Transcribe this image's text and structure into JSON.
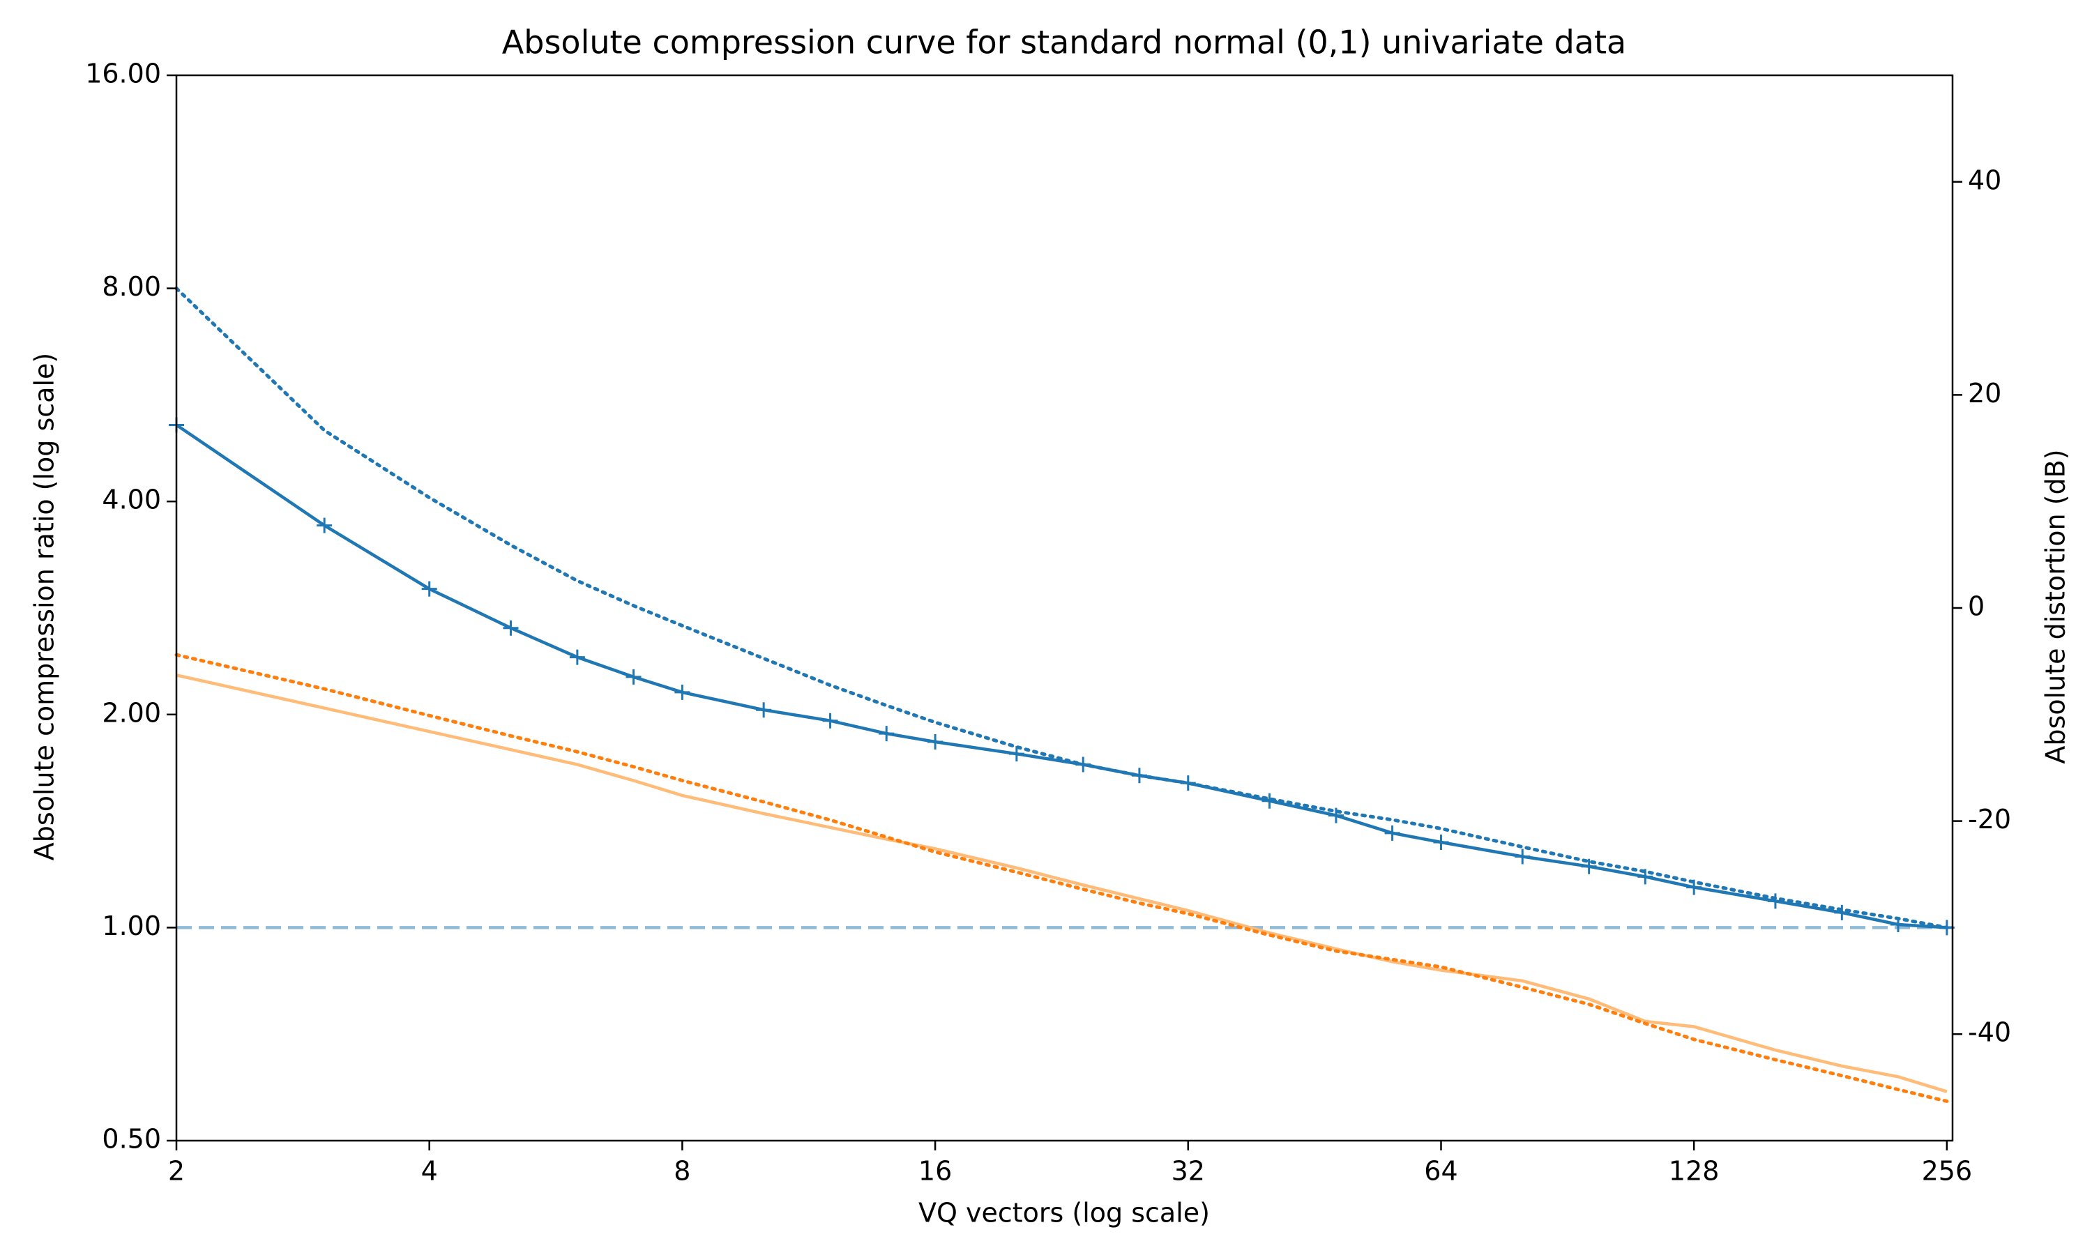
{
  "chart_data": {
    "type": "line",
    "title": "Absolute compression curve for standard normal (0,1) univariate data",
    "xlabel": "VQ vectors (log scale)",
    "ylabel": "Absolute compression ratio (log scale)",
    "y2label": "Absolute distortion (dB)",
    "xscale": "log",
    "yscale": "log",
    "x": [
      2,
      3,
      4,
      5,
      6,
      7,
      8,
      10,
      12,
      14,
      16,
      20,
      24,
      28,
      32,
      40,
      48,
      56,
      64,
      80,
      96,
      112,
      128,
      160,
      192,
      224,
      256
    ],
    "xlim": [
      2,
      260
    ],
    "xticks": [
      2,
      4,
      8,
      16,
      32,
      64,
      128,
      256
    ],
    "ylim": [
      0.5,
      16
    ],
    "yticks": [
      {
        "value": 0.5,
        "label": "0.50"
      },
      {
        "value": 1,
        "label": "1.00"
      },
      {
        "value": 2,
        "label": "2.00"
      },
      {
        "value": 4,
        "label": "4.00"
      },
      {
        "value": 8,
        "label": "8.00"
      },
      {
        "value": 16,
        "label": "16.00"
      }
    ],
    "y2lim": [
      -50,
      50
    ],
    "y2ticks": [
      -40,
      -20,
      0,
      20,
      40
    ],
    "reference_line": {
      "value": 1,
      "color": "#8fbbd9",
      "linestyle": "dashed"
    },
    "series": [
      {
        "color": "#1f77b4",
        "linestyle": "solid",
        "marker": "+",
        "axis": "y",
        "values": [
          5.13,
          3.7,
          3.01,
          2.65,
          2.41,
          2.26,
          2.15,
          2.03,
          1.96,
          1.88,
          1.83,
          1.76,
          1.7,
          1.64,
          1.6,
          1.51,
          1.44,
          1.36,
          1.32,
          1.26,
          1.22,
          1.18,
          1.14,
          1.09,
          1.05,
          1.01,
          1.0
        ]
      },
      {
        "color": "#1f77b4",
        "linestyle": "dotted",
        "axis": "y",
        "values": [
          8,
          5.04,
          4.05,
          3.47,
          3.09,
          2.85,
          2.67,
          2.4,
          2.2,
          2.06,
          1.95,
          1.8,
          1.7,
          1.64,
          1.6,
          1.52,
          1.46,
          1.42,
          1.38,
          1.3,
          1.24,
          1.2,
          1.16,
          1.1,
          1.06,
          1.03,
          1.0
        ]
      },
      {
        "color": "#ffbb78",
        "linestyle": "solid",
        "axis": "y2",
        "values": [
          -6.3,
          -9.4,
          -11.6,
          -13.3,
          -14.7,
          -16.2,
          -17.6,
          -19.3,
          -20.6,
          -21.7,
          -22.6,
          -24.4,
          -26.0,
          -27.3,
          -28.4,
          -30.5,
          -32.0,
          -33.2,
          -34.0,
          -35.0,
          -36.7,
          -38.8,
          -39.3,
          -41.5,
          -43.0,
          -44.0,
          -45.4
        ]
      },
      {
        "color": "#ff7f0e",
        "linestyle": "dotted",
        "axis": "y2",
        "values": [
          -4.4,
          -7.6,
          -10.1,
          -12.0,
          -13.5,
          -14.9,
          -16.2,
          -18.2,
          -19.9,
          -21.5,
          -22.9,
          -24.8,
          -26.4,
          -27.7,
          -28.7,
          -30.7,
          -32.2,
          -33.0,
          -33.7,
          -35.6,
          -37.2,
          -39.0,
          -40.5,
          -42.4,
          -43.9,
          -45.2,
          -46.3
        ]
      }
    ]
  }
}
